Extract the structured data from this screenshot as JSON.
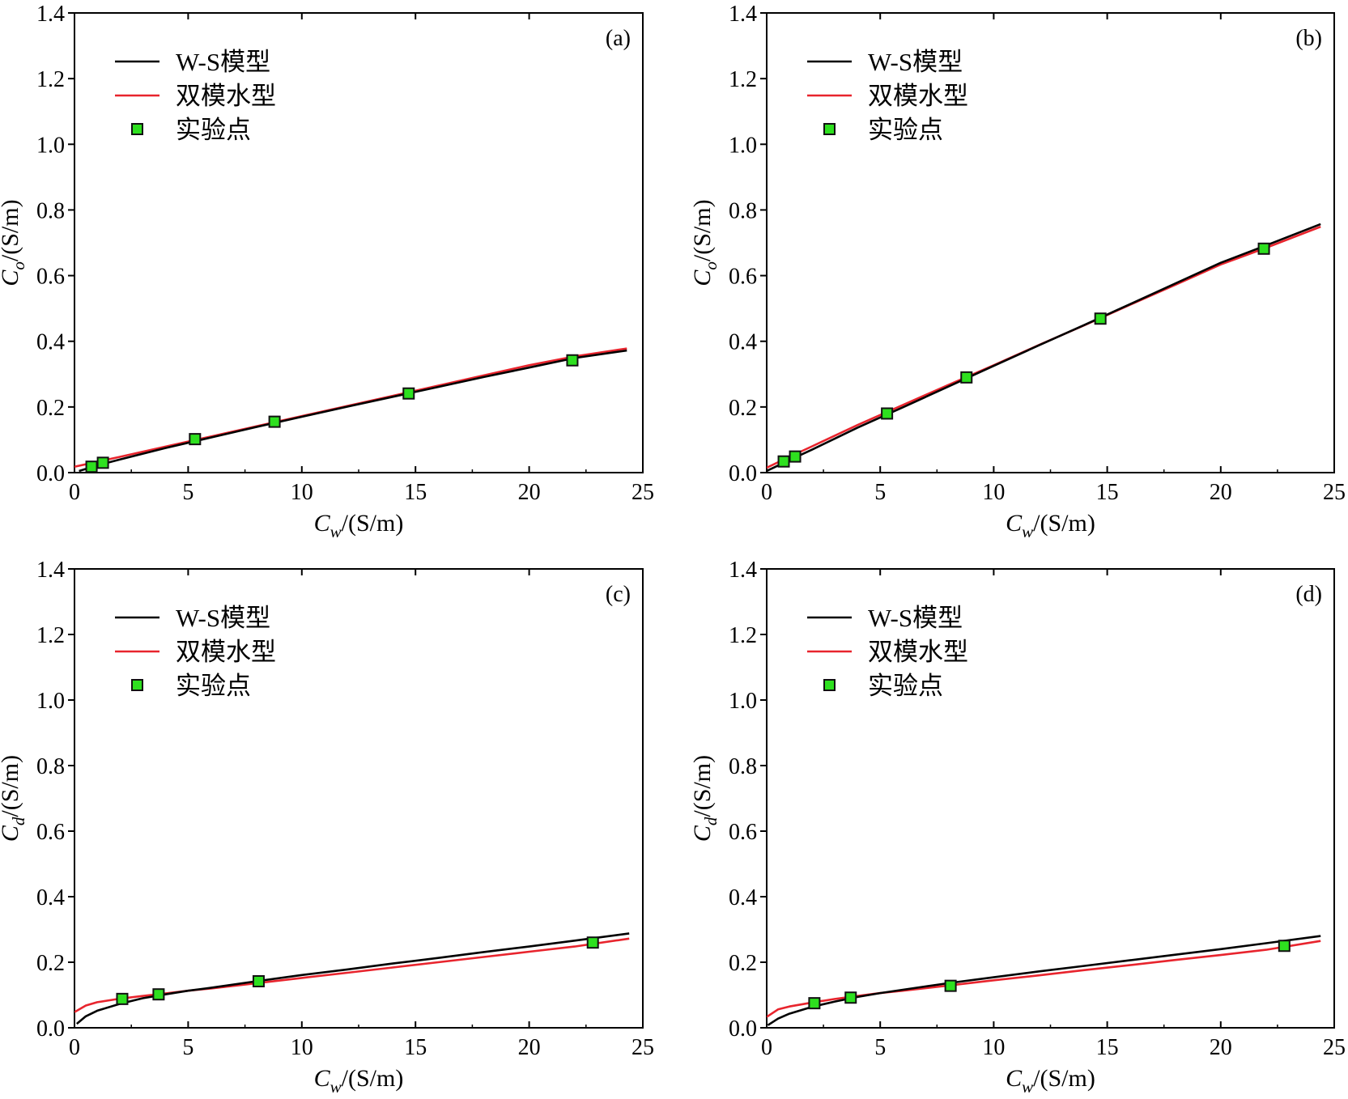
{
  "colors": {
    "ws": "#000000",
    "dual": "#e8242d",
    "marker_fill": "#2ee01f",
    "marker_edge": "#111111",
    "frame": "#000000"
  },
  "chart_data": [
    {
      "type": "line",
      "panel_label": "(a)",
      "xlabel": "C_w/(S/m)",
      "xlabel_main": "C",
      "xlabel_sub": "w",
      "xlabel_unit": "/(S/m)",
      "ylabel": "C_o/(S/m)",
      "ylabel_main": "C",
      "ylabel_sub": "o",
      "ylabel_unit": "/(S/m)",
      "xlim": [
        0,
        25
      ],
      "ylim": [
        0,
        1.4
      ],
      "xticks": [
        "0",
        "5",
        "10",
        "15",
        "20",
        "25"
      ],
      "yticks": [
        "0.0",
        "0.2",
        "0.4",
        "0.6",
        "0.8",
        "1.0",
        "1.2",
        "1.4"
      ],
      "legend": [
        "W-S模型",
        "双模水型",
        "实验点"
      ],
      "legend_position": "upper-left",
      "series": [
        {
          "name": "W-S模型",
          "kind": "line",
          "x": [
            0.2,
            1,
            2,
            4,
            6,
            8,
            10,
            12,
            14,
            16,
            18,
            20,
            22,
            24.3
          ],
          "y": [
            0.005,
            0.022,
            0.04,
            0.075,
            0.107,
            0.139,
            0.17,
            0.201,
            0.231,
            0.261,
            0.291,
            0.32,
            0.349,
            0.372
          ]
        },
        {
          "name": "双模水型",
          "kind": "line",
          "x": [
            0,
            1,
            2,
            4,
            6,
            8,
            10,
            12,
            14,
            16,
            18,
            20,
            22,
            24.3
          ],
          "y": [
            0.018,
            0.033,
            0.048,
            0.079,
            0.11,
            0.141,
            0.172,
            0.203,
            0.234,
            0.265,
            0.296,
            0.327,
            0.354,
            0.378
          ]
        },
        {
          "name": "实验点",
          "kind": "scatter",
          "x": [
            0.75,
            1.25,
            5.3,
            8.8,
            14.7,
            21.9
          ],
          "y": [
            0.018,
            0.03,
            0.102,
            0.155,
            0.241,
            0.342
          ]
        }
      ]
    },
    {
      "type": "line",
      "panel_label": "(b)",
      "xlabel": "C_w/(S/m)",
      "xlabel_main": "C",
      "xlabel_sub": "w",
      "xlabel_unit": "/(S/m)",
      "ylabel": "C_o/(S/m)",
      "ylabel_main": "C",
      "ylabel_sub": "o",
      "ylabel_unit": "/(S/m)",
      "xlim": [
        0,
        25
      ],
      "ylim": [
        0,
        1.4
      ],
      "xticks": [
        "0",
        "5",
        "10",
        "15",
        "20",
        "25"
      ],
      "yticks": [
        "0.0",
        "0.2",
        "0.4",
        "0.6",
        "0.8",
        "1.0",
        "1.2",
        "1.4"
      ],
      "legend": [
        "W-S模型",
        "双模水型",
        "实验点"
      ],
      "legend_position": "upper-left",
      "series": [
        {
          "name": "W-S模型",
          "kind": "line",
          "x": [
            0,
            1,
            2,
            4,
            6,
            8,
            10,
            12,
            14,
            16,
            18,
            20,
            22,
            24.4
          ],
          "y": [
            0.005,
            0.038,
            0.07,
            0.137,
            0.199,
            0.262,
            0.325,
            0.388,
            0.45,
            0.513,
            0.576,
            0.639,
            0.692,
            0.757
          ]
        },
        {
          "name": "双模水型",
          "kind": "line",
          "x": [
            0,
            1,
            2,
            4,
            6,
            8,
            10,
            12,
            14,
            16,
            18,
            20,
            22,
            24.4
          ],
          "y": [
            0.015,
            0.048,
            0.08,
            0.145,
            0.206,
            0.267,
            0.327,
            0.389,
            0.449,
            0.511,
            0.572,
            0.634,
            0.685,
            0.749
          ]
        },
        {
          "name": "实验点",
          "kind": "scatter",
          "x": [
            0.75,
            1.25,
            5.3,
            8.8,
            14.7,
            21.9
          ],
          "y": [
            0.034,
            0.049,
            0.18,
            0.29,
            0.469,
            0.682
          ]
        }
      ]
    },
    {
      "type": "line",
      "panel_label": "(c)",
      "xlabel": "C_w/(S/m)",
      "xlabel_main": "C",
      "xlabel_sub": "w",
      "xlabel_unit": "/(S/m)",
      "ylabel": "C_d/(S/m)",
      "ylabel_main": "C",
      "ylabel_sub": "d",
      "ylabel_unit": "/(S/m)",
      "xlim": [
        0,
        25
      ],
      "ylim": [
        0,
        1.4
      ],
      "xticks": [
        "0",
        "5",
        "10",
        "15",
        "20",
        "25"
      ],
      "yticks": [
        "0.0",
        "0.2",
        "0.4",
        "0.6",
        "0.8",
        "1.0",
        "1.2",
        "1.4"
      ],
      "legend": [
        "W-S模型",
        "双模水型",
        "实验点"
      ],
      "legend_position": "upper-left",
      "series": [
        {
          "name": "W-S模型",
          "kind": "line",
          "x": [
            0.1,
            0.5,
            1,
            2,
            3,
            4,
            5,
            6,
            8,
            10,
            12,
            14,
            16,
            18,
            20,
            22,
            24.4
          ],
          "y": [
            0.012,
            0.035,
            0.052,
            0.073,
            0.09,
            0.102,
            0.113,
            0.122,
            0.142,
            0.161,
            0.178,
            0.196,
            0.213,
            0.231,
            0.248,
            0.266,
            0.288
          ]
        },
        {
          "name": "双模水型",
          "kind": "line",
          "x": [
            0,
            0.5,
            1,
            2,
            3,
            4,
            5,
            6,
            8,
            10,
            12,
            14,
            16,
            18,
            20,
            22,
            24.4
          ],
          "y": [
            0.048,
            0.068,
            0.078,
            0.089,
            0.097,
            0.105,
            0.113,
            0.12,
            0.136,
            0.152,
            0.168,
            0.184,
            0.2,
            0.216,
            0.232,
            0.248,
            0.272
          ]
        },
        {
          "name": "实验点",
          "kind": "scatter",
          "x": [
            2.1,
            3.7,
            8.1,
            22.8
          ],
          "y": [
            0.088,
            0.102,
            0.142,
            0.26
          ]
        }
      ]
    },
    {
      "type": "line",
      "panel_label": "(d)",
      "xlabel": "C_w/(S/m)",
      "xlabel_main": "C",
      "xlabel_sub": "w",
      "xlabel_unit": "/(S/m)",
      "ylabel": "C_d/(S/m)",
      "ylabel_main": "C",
      "ylabel_sub": "d",
      "ylabel_unit": "/(S/m)",
      "xlim": [
        0,
        25
      ],
      "ylim": [
        0,
        1.4
      ],
      "xticks": [
        "0",
        "5",
        "10",
        "15",
        "20",
        "25"
      ],
      "yticks": [
        "0.0",
        "0.2",
        "0.4",
        "0.6",
        "0.8",
        "1.0",
        "1.2",
        "1.4"
      ],
      "legend": [
        "W-S模型",
        "双模水型",
        "实验点"
      ],
      "legend_position": "upper-left",
      "series": [
        {
          "name": "W-S模型",
          "kind": "line",
          "x": [
            0.05,
            0.5,
            1,
            2,
            3,
            4,
            5,
            6,
            8,
            10,
            12,
            14,
            16,
            18,
            20,
            22,
            24.4
          ],
          "y": [
            0.008,
            0.028,
            0.043,
            0.064,
            0.08,
            0.094,
            0.106,
            0.116,
            0.136,
            0.154,
            0.172,
            0.189,
            0.206,
            0.223,
            0.24,
            0.258,
            0.28
          ]
        },
        {
          "name": "双模水型",
          "kind": "line",
          "x": [
            0,
            0.5,
            1,
            2,
            3,
            4,
            5,
            6,
            8,
            10,
            12,
            14,
            16,
            18,
            20,
            22,
            24.4
          ],
          "y": [
            0.033,
            0.056,
            0.065,
            0.077,
            0.088,
            0.097,
            0.106,
            0.113,
            0.129,
            0.145,
            0.16,
            0.176,
            0.191,
            0.207,
            0.222,
            0.238,
            0.265
          ]
        },
        {
          "name": "实验点",
          "kind": "scatter",
          "x": [
            2.1,
            3.7,
            8.1,
            22.8
          ],
          "y": [
            0.075,
            0.092,
            0.128,
            0.25
          ]
        }
      ]
    }
  ]
}
